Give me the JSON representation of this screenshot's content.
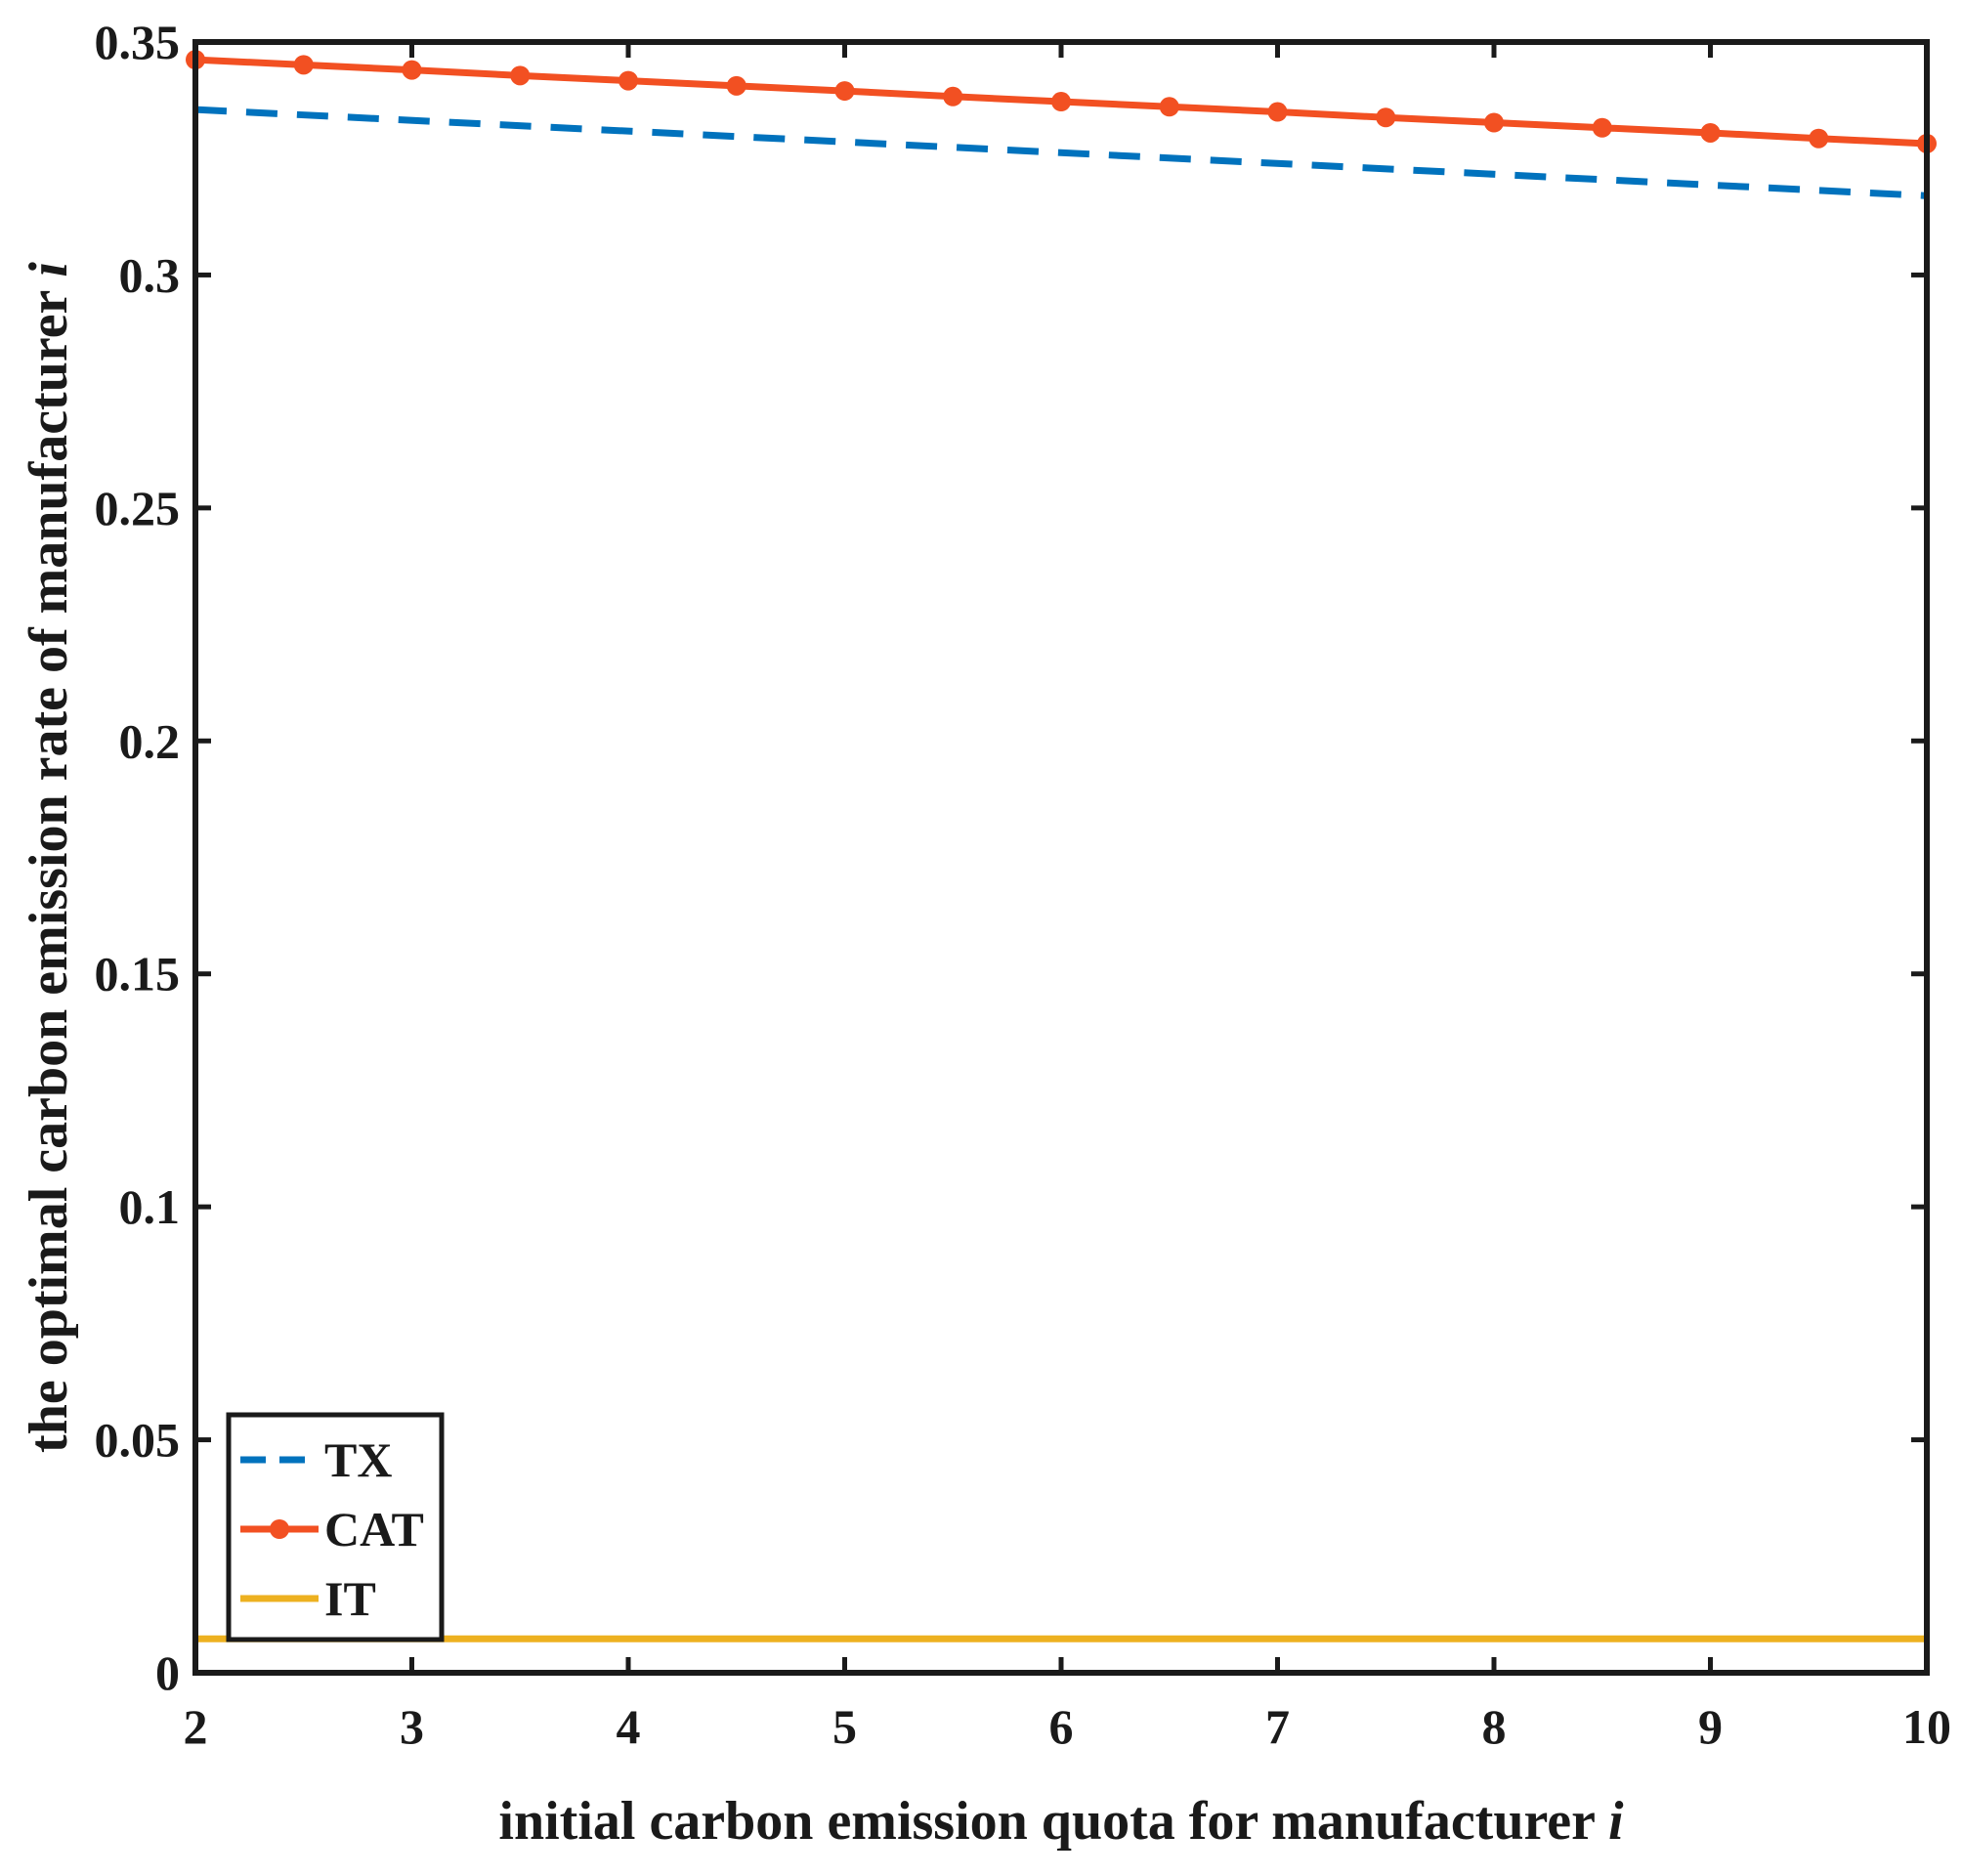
{
  "chart_data": {
    "type": "line",
    "xlabel_main": "initial carbon emission quota for manufacturer ",
    "xlabel_var": "i",
    "ylabel_main": "the optimal carbon emission rate of manufacturer ",
    "ylabel_var": "i",
    "xlim": [
      2,
      10
    ],
    "ylim": [
      0,
      0.35
    ],
    "xticks": [
      2,
      3,
      4,
      5,
      6,
      7,
      8,
      9,
      10
    ],
    "yticks": [
      0,
      0.05,
      0.1,
      0.15,
      0.2,
      0.25,
      0.3,
      0.35
    ],
    "xtick_labels": [
      "2",
      "3",
      "4",
      "5",
      "6",
      "7",
      "8",
      "9",
      "10"
    ],
    "ytick_labels": [
      "0",
      "0.05",
      "0.1",
      "0.15",
      "0.2",
      "0.25",
      "0.3",
      "0.35"
    ],
    "legend_position": "bottom-left",
    "grid": false,
    "series": [
      {
        "name": "TX",
        "color": "#0072BD",
        "style": "dashed",
        "marker": "none",
        "x": [
          2,
          10
        ],
        "y": [
          0.3355,
          0.317
        ]
      },
      {
        "name": "CAT",
        "color": "#F25022",
        "style": "solid",
        "marker": "dot",
        "x": [
          2,
          2.5,
          3,
          3.5,
          4,
          4.5,
          5,
          5.5,
          6,
          6.5,
          7,
          7.5,
          8,
          8.5,
          9,
          9.5,
          10
        ],
        "y": [
          0.3462,
          0.3451,
          0.344,
          0.3428,
          0.3417,
          0.3406,
          0.3395,
          0.3383,
          0.3372,
          0.3361,
          0.335,
          0.3338,
          0.3327,
          0.3316,
          0.3305,
          0.3293,
          0.3282
        ]
      },
      {
        "name": "IT",
        "color": "#EDB120",
        "style": "solid",
        "marker": "none",
        "x": [
          2,
          10
        ],
        "y": [
          0.0073,
          0.0073
        ]
      }
    ]
  }
}
